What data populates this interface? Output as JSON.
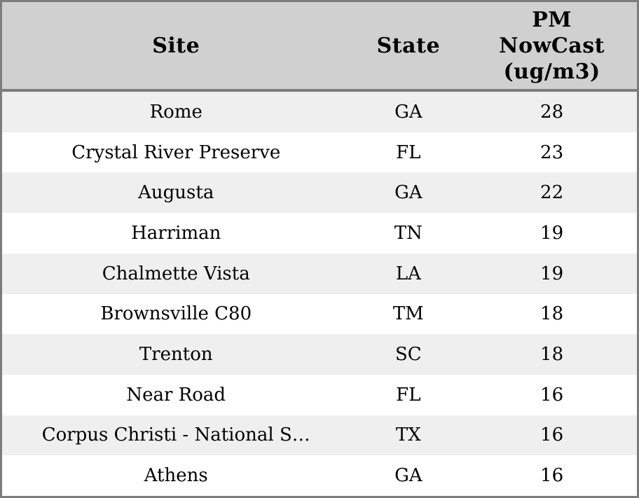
{
  "chart_data": {
    "type": "table",
    "title": "",
    "columns": [
      "Site",
      "State",
      "PM NowCast (ug/m3)"
    ],
    "rows": [
      [
        "Rome",
        "GA",
        28
      ],
      [
        "Crystal River Preserve",
        "FL",
        23
      ],
      [
        "Augusta",
        "GA",
        22
      ],
      [
        "Harriman",
        "TN",
        19
      ],
      [
        "Chalmette Vista",
        "LA",
        19
      ],
      [
        "Brownsville C80",
        "TM",
        18
      ],
      [
        "Trenton",
        "SC",
        18
      ],
      [
        "Near Road",
        "FL",
        16
      ],
      [
        "Corpus Christi - National S…",
        "TX",
        16
      ],
      [
        "Athens",
        "GA",
        16
      ]
    ],
    "layout": {
      "grid": "none",
      "row_striping": true,
      "alignment": "center"
    }
  },
  "header": {
    "pm_label_lines": [
      "PM",
      "NowCast",
      "(ug/m3)"
    ]
  },
  "colors": {
    "header_bg": "#d0d0d0",
    "row_alt_bg": "#efefef",
    "row_bg": "#ffffff",
    "border": "#7c7c7c",
    "text": "#000000"
  }
}
